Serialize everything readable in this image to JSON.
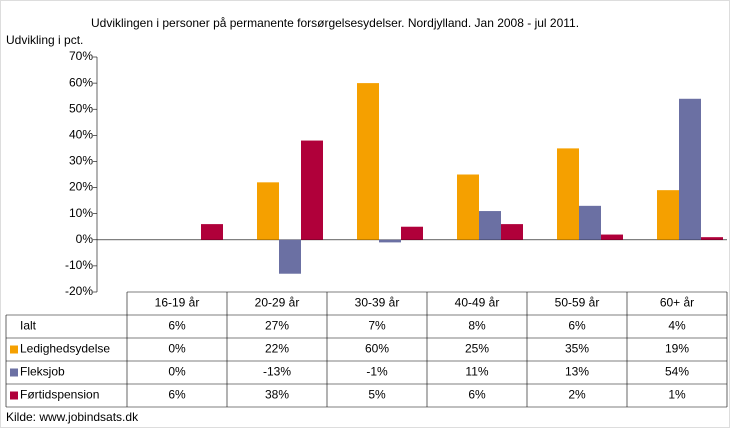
{
  "chart_data": {
    "type": "bar",
    "title": "Udviklingen i personer på permanente forsørgelsesydelser. Nordjylland. Jan 2008 - jul 2011.",
    "y_label": "Udvikling i pct.",
    "source": "Kilde: www.jobindsats.dk",
    "categories": [
      "16-19 år",
      "20-29 år",
      "30-39 år",
      "40-49 år",
      "50-59 år",
      "60+ år"
    ],
    "total": {
      "name": "Ialt",
      "values": [
        6,
        27,
        7,
        8,
        6,
        4
      ],
      "value_labels": [
        "6%",
        "27%",
        "7%",
        "8%",
        "6%",
        "4%"
      ]
    },
    "series": [
      {
        "name": "Ledighedsydelse",
        "color": "#f5a000",
        "values": [
          0,
          22,
          60,
          25,
          35,
          19
        ],
        "value_labels": [
          "0%",
          "22%",
          "60%",
          "25%",
          "35%",
          "19%"
        ]
      },
      {
        "name": "Fleksjob",
        "color": "#6b70a3",
        "values": [
          0,
          -13,
          -1,
          11,
          13,
          54
        ],
        "value_labels": [
          "0%",
          "-13%",
          "-1%",
          "11%",
          "13%",
          "54%"
        ]
      },
      {
        "name": "Førtidspension",
        "color": "#b0003a",
        "values": [
          6,
          38,
          5,
          6,
          2,
          1
        ],
        "value_labels": [
          "6%",
          "38%",
          "5%",
          "6%",
          "2%",
          "1%"
        ]
      }
    ],
    "ylim": [
      -20,
      70
    ],
    "yticks": [
      {
        "value": -20,
        "label": "-20%"
      },
      {
        "value": -10,
        "label": "-10%"
      },
      {
        "value": 0,
        "label": "0%"
      },
      {
        "value": 10,
        "label": "10%"
      },
      {
        "value": 20,
        "label": "20%"
      },
      {
        "value": 30,
        "label": "30%"
      },
      {
        "value": 40,
        "label": "40%"
      },
      {
        "value": 50,
        "label": "50%"
      },
      {
        "value": 60,
        "label": "60%"
      },
      {
        "value": 70,
        "label": "70%"
      }
    ]
  }
}
